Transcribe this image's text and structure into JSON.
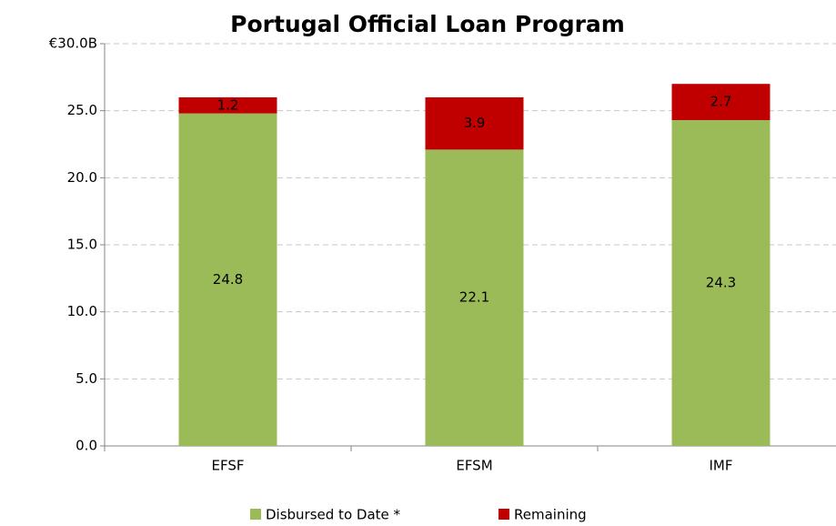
{
  "chart_data": {
    "type": "stacked_bar",
    "title": "Portugal Official Loan Program",
    "categories": [
      "EFSF",
      "EFSM",
      "IMF"
    ],
    "series": [
      {
        "name": "Disbursed to Date *",
        "color": "#9bbb59",
        "values": [
          24.8,
          22.1,
          24.3
        ]
      },
      {
        "name": "Remaining",
        "color": "#c00000",
        "values": [
          1.2,
          3.9,
          2.7
        ]
      }
    ],
    "ylim": [
      0,
      30
    ],
    "yticks": [
      {
        "value": 0,
        "label": "0.0"
      },
      {
        "value": 5,
        "label": "5.0"
      },
      {
        "value": 10,
        "label": "10.0"
      },
      {
        "value": 15,
        "label": "15.0"
      },
      {
        "value": 20,
        "label": "20.0"
      },
      {
        "value": 25,
        "label": "25.0"
      },
      {
        "value": 30,
        "label": "€30.0B"
      }
    ],
    "grid": true,
    "legend": "bottom"
  }
}
